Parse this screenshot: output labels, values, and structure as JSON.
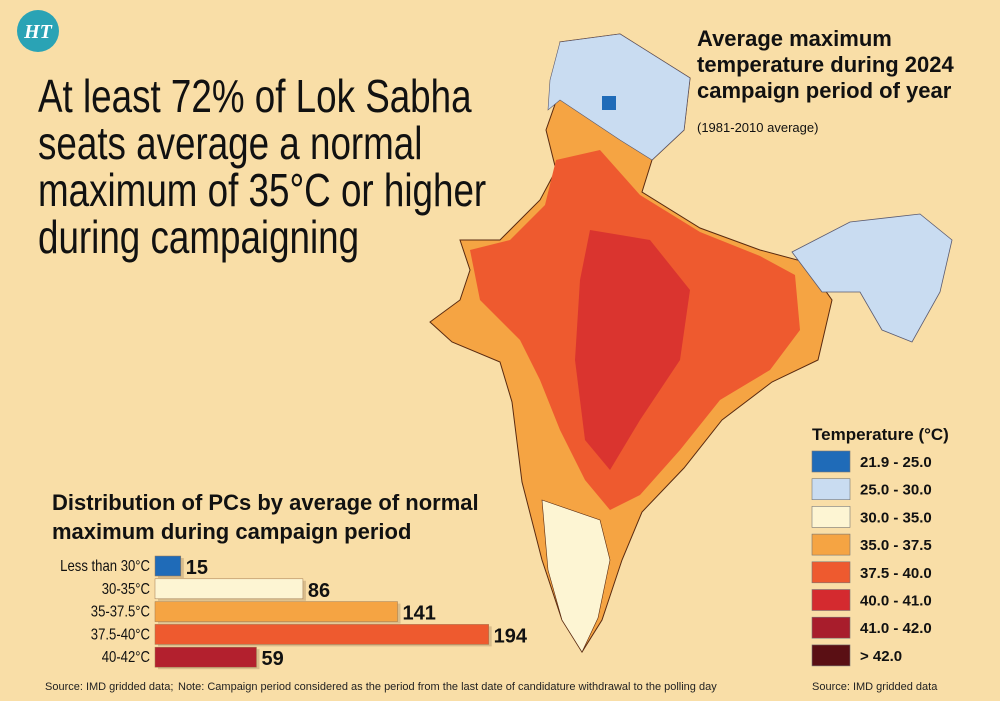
{
  "logo": "HT",
  "headline": [
    "At least 72% of Lok Sabha",
    "seats average a normal",
    "maximum of 35°C or higher",
    "during campaigning"
  ],
  "map": {
    "title": [
      "Average maximum",
      "temperature during 2024",
      "campaign period of year"
    ],
    "subtitle": "(1981-2010 average)",
    "legend_title": "Temperature (°C)",
    "legend": [
      {
        "label": "21.9 - 25.0",
        "color": "#1f6bb8"
      },
      {
        "label": "25.0 - 30.0",
        "color": "#c9dcf1"
      },
      {
        "label": "30.0 - 35.0",
        "color": "#fdf5d3"
      },
      {
        "label": "35.0 - 37.5",
        "color": "#f5a443"
      },
      {
        "label": "37.5 - 40.0",
        "color": "#ee5a2f"
      },
      {
        "label": "40.0 - 41.0",
        "color": "#d42a2f"
      },
      {
        "label": "41.0 - 42.0",
        "color": "#a81d2c"
      },
      {
        "label": "> 42.0",
        "color": "#5a0f14"
      }
    ],
    "source": "Source: IMD gridded data"
  },
  "chart_data": {
    "type": "bar",
    "orientation": "horizontal",
    "title": [
      "Distribution of PCs by average of normal",
      "maximum during campaign period"
    ],
    "categories": [
      "Less than 30°C",
      "30-35°C",
      "35-37.5°C",
      "37.5-40°C",
      "40-42°C"
    ],
    "values": [
      15,
      86,
      141,
      194,
      59
    ],
    "colors": [
      "#1f6bb8",
      "#fdf5d3",
      "#f5a443",
      "#ee5a2f",
      "#b3202e"
    ]
  },
  "footer": {
    "source": "Source: IMD gridded data;",
    "note": "Note: Campaign period considered as the period from the last date of candidature withdrawal to the polling day"
  }
}
